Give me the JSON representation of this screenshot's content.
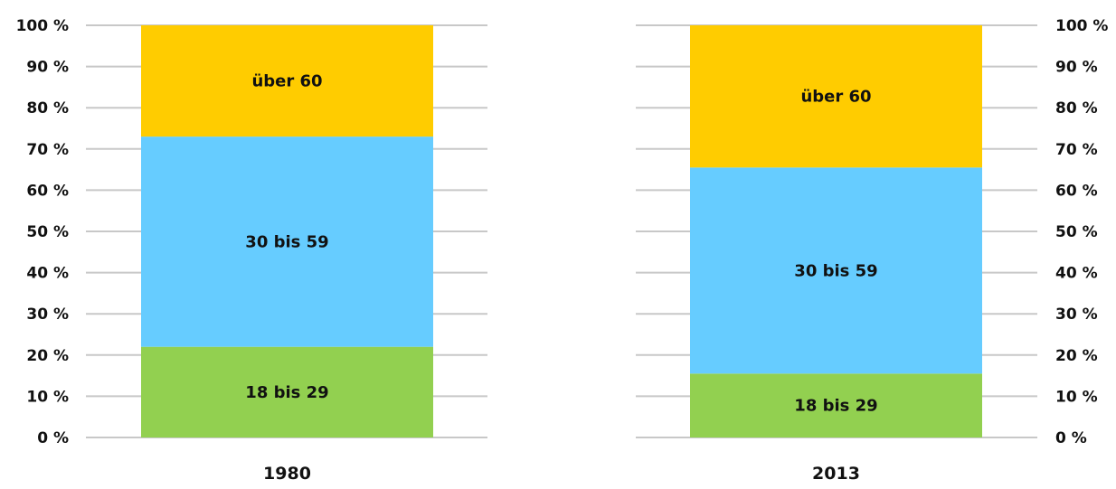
{
  "chart_data": [
    {
      "type": "bar",
      "stacked": true,
      "categories": [
        "1980"
      ],
      "series": [
        {
          "name": "18 bis 29",
          "values": [
            22
          ],
          "color": "#92d050"
        },
        {
          "name": "30 bis 59",
          "values": [
            51
          ],
          "color": "#66ccff"
        },
        {
          "name": "über 60",
          "values": [
            27
          ],
          "color": "#ffcc00"
        }
      ],
      "ylim": [
        0,
        100
      ],
      "yticks": [
        "0 %",
        "10 %",
        "20 %",
        "30 %",
        "40 %",
        "50 %",
        "60 %",
        "70 %",
        "80 %",
        "90 %",
        "100 %"
      ],
      "yaxis_side": "left",
      "grid": true
    },
    {
      "type": "bar",
      "stacked": true,
      "categories": [
        "2013"
      ],
      "series": [
        {
          "name": "18 bis 29",
          "values": [
            15.5
          ],
          "color": "#92d050"
        },
        {
          "name": "30 bis 59",
          "values": [
            50
          ],
          "color": "#66ccff"
        },
        {
          "name": "über 60",
          "values": [
            34.5
          ],
          "color": "#ffcc00"
        }
      ],
      "ylim": [
        0,
        100
      ],
      "yticks": [
        "0 %",
        "10 %",
        "20 %",
        "30 %",
        "40 %",
        "50 %",
        "60 %",
        "70 %",
        "80 %",
        "90 %",
        "100 %"
      ],
      "yaxis_side": "right",
      "grid": true
    }
  ],
  "colors": {
    "grid": "#c8c8c8",
    "text": "#111111"
  }
}
